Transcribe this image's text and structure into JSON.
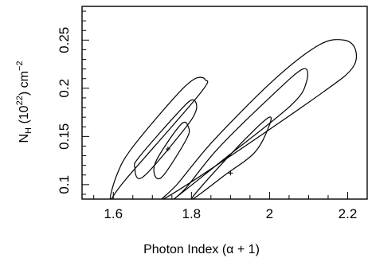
{
  "chart_data": {
    "type": "contour",
    "xlabel": "Photon Index (α + 1)",
    "ylabel": {
      "main": "N",
      "sub": "H",
      "rest": " (10",
      "exp": "22",
      "unit": ") cm",
      "unit_exp": "−2"
    },
    "xlim": [
      1.52,
      2.25
    ],
    "ylim": [
      0.085,
      0.285
    ],
    "xticks": [
      1.6,
      1.8,
      2.0,
      2.2
    ],
    "xtick_labels": [
      "1.6",
      "1.8",
      "2",
      "2.2"
    ],
    "yticks": [
      0.1,
      0.15,
      0.2,
      0.25
    ],
    "ytick_labels": [
      "0.1",
      "0.15",
      "0.2",
      "0.25"
    ],
    "grid": false,
    "line_color": "#000000",
    "series": [
      {
        "best_fit": {
          "x": 1.74,
          "y": 0.137
        },
        "contours": [
          [
            [
              1.722,
              0.107
            ],
            [
              1.787,
              0.147
            ],
            [
              1.792,
              0.16
            ],
            [
              1.772,
              0.162
            ],
            [
              1.707,
              0.122
            ]
          ],
          [
            [
              1.676,
              0.108
            ],
            [
              1.779,
              0.156
            ],
            [
              1.812,
              0.177
            ],
            [
              1.804,
              0.188
            ],
            [
              1.771,
              0.177
            ],
            [
              1.669,
              0.13
            ],
            [
              1.655,
              0.118
            ]
          ],
          [
            [
              1.593,
              0.085
            ],
            [
              1.633,
              0.106
            ],
            [
              1.821,
              0.194
            ],
            [
              1.835,
              0.209
            ],
            [
              1.805,
              0.209
            ],
            [
              1.749,
              0.187
            ],
            [
              1.646,
              0.137
            ],
            [
              1.61,
              0.111
            ]
          ]
        ]
      },
      {
        "best_fit": {
          "x": 1.9,
          "y": 0.112
        },
        "contours": [
          [
            [
              1.803,
              0.085
            ],
            [
              1.886,
              0.11
            ],
            [
              1.961,
              0.133
            ],
            [
              1.996,
              0.158
            ],
            [
              1.999,
              0.17
            ],
            [
              1.937,
              0.147
            ],
            [
              1.832,
              0.101
            ]
          ],
          [
            [
              1.755,
              0.085
            ],
            [
              1.882,
              0.126
            ],
            [
              2.054,
              0.182
            ],
            [
              2.094,
              0.206
            ],
            [
              2.085,
              0.22
            ],
            [
              1.997,
              0.189
            ],
            [
              1.867,
              0.137
            ],
            [
              1.787,
              0.097
            ]
          ],
          [
            [
              1.728,
              0.085
            ],
            [
              1.89,
              0.127
            ],
            [
              2.137,
              0.196
            ],
            [
              2.212,
              0.221
            ],
            [
              2.22,
              0.24
            ],
            [
              2.191,
              0.25
            ],
            [
              2.127,
              0.245
            ],
            [
              2.012,
              0.209
            ],
            [
              1.857,
              0.146
            ],
            [
              1.765,
              0.101
            ]
          ]
        ]
      }
    ]
  }
}
